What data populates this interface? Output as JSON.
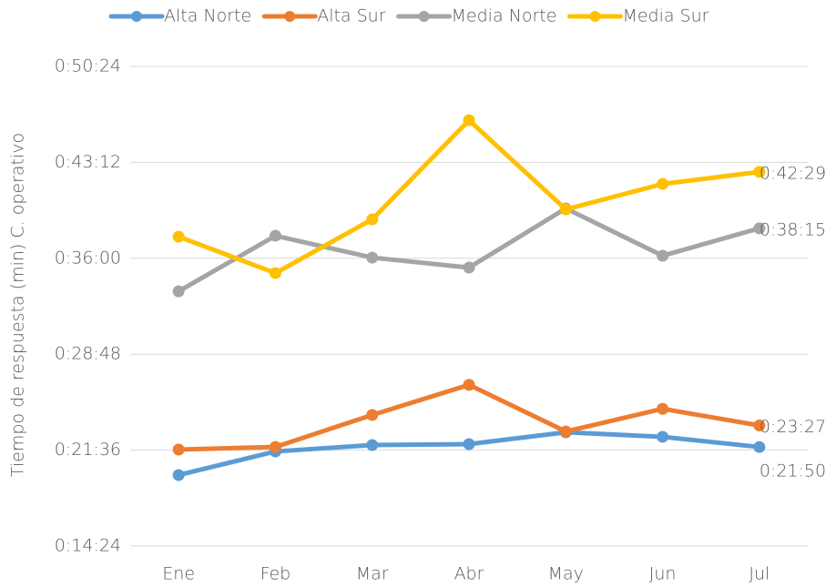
{
  "chart_data": {
    "type": "line",
    "y_label": "Tiempo de respuesta (min) C. operativo",
    "categories": [
      "Ene",
      "Feb",
      "Mar",
      "Abr",
      "May",
      "Jun",
      "Jul"
    ],
    "series": [
      {
        "name": "Alta Norte",
        "color": "#5b9bd5",
        "values": [
          19.73,
          21.5,
          21.98,
          22.05,
          22.94,
          22.6,
          21.833
        ],
        "value_labels": [
          null,
          null,
          null,
          null,
          null,
          null,
          "0:21:50"
        ]
      },
      {
        "name": "Alta Sur",
        "color": "#ed7d31",
        "values": [
          21.64,
          21.84,
          24.24,
          26.5,
          23.0,
          24.7,
          23.45
        ],
        "value_labels": [
          null,
          null,
          null,
          null,
          null,
          null,
          "0:23:27"
        ]
      },
      {
        "name": "Media Norte",
        "color": "#a5a5a5",
        "values": [
          33.52,
          37.69,
          36.05,
          35.3,
          39.74,
          36.19,
          38.25
        ],
        "value_labels": [
          null,
          null,
          null,
          null,
          null,
          null,
          "0:38:15"
        ]
      },
      {
        "name": "Media Sur",
        "color": "#ffc000",
        "values": [
          37.62,
          34.89,
          38.92,
          46.36,
          39.67,
          41.58,
          42.483
        ],
        "value_labels": [
          null,
          null,
          null,
          null,
          null,
          null,
          "0:42:29"
        ]
      }
    ],
    "ylim": [
      14.4,
      50.4
    ],
    "yticks": [
      {
        "value": 14.4,
        "label": "0:14:24"
      },
      {
        "value": 21.6,
        "label": "0:21:36"
      },
      {
        "value": 28.8,
        "label": "0:28:48"
      },
      {
        "value": 36,
        "label": "0:36:00"
      },
      {
        "value": 43.2,
        "label": "0:43:12"
      },
      {
        "value": 50.4,
        "label": "0:50:24"
      }
    ],
    "grid": true,
    "legend": "top"
  }
}
